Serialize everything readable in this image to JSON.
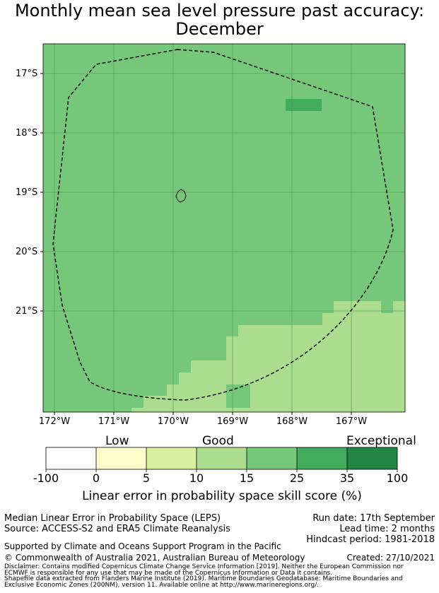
{
  "title": {
    "line1": "Monthly mean sea level pressure past accuracy:",
    "line2": "December"
  },
  "map": {
    "lat_labels": [
      "17°S",
      "18°S",
      "19°S",
      "20°S",
      "21°S"
    ],
    "lon_labels": [
      "172°W",
      "171°W",
      "170°W",
      "169°W",
      "168°W",
      "167°W"
    ],
    "lat_range": [
      -22.7,
      -16.5
    ],
    "lon_range": [
      -172.2,
      -166.1
    ],
    "base_category": "15-25",
    "colors": {
      "c15_25": "#77c77a",
      "c10_15": "#acdd8f",
      "c25_35": "#41ac5c",
      "grid": "#4f9a55",
      "eez_line": "#000000"
    },
    "features": [
      "eez-boundary-dashed",
      "niue-island-outline"
    ]
  },
  "colorbar": {
    "categories": {
      "low": "Low",
      "good": "Good",
      "exceptional": "Exceptional"
    },
    "ticks": [
      "-100",
      "0",
      "5",
      "10",
      "15",
      "25",
      "35",
      "100"
    ],
    "colors": [
      "#ffffff",
      "#ffffce",
      "#d8efa1",
      "#acdd8f",
      "#77c77a",
      "#41ac5c",
      "#238646"
    ],
    "label": "Linear error in probability space skill score (%)"
  },
  "footer": {
    "method": "Median Linear Error in Probability Space (LEPS)",
    "source": "Source: ACCESS-S2 and ERA5 Climate Reanalysis",
    "run_date": "Run date: 17th September",
    "lead_time": "Lead time: 2 months",
    "hindcast": "Hindcast period: 1981-2018",
    "support": "Supported by Climate and Oceans Support Program in the Pacific",
    "copyright": "© Commonwealth of Australia 2021, Australian Bureau of Meteorology",
    "created": "Created: 27/10/2021",
    "disclaimer1": "Disclaimer: Contains modified Copernicus Climate Change Service Information [2019]. Neither the European Commission nor",
    "disclaimer2": "ECMWF is responsible for any use that may be made of the Copernicus Information or Data it contains.",
    "shapefile1": "Shapefile data extracted from Flanders Marine Institute (2019). Maritime Boundaries Geodatabase: Maritime Boundaries and",
    "shapefile2": "Exclusive Economic Zones (200NM), version 11. Available online at http://www.marineregions.org/."
  }
}
